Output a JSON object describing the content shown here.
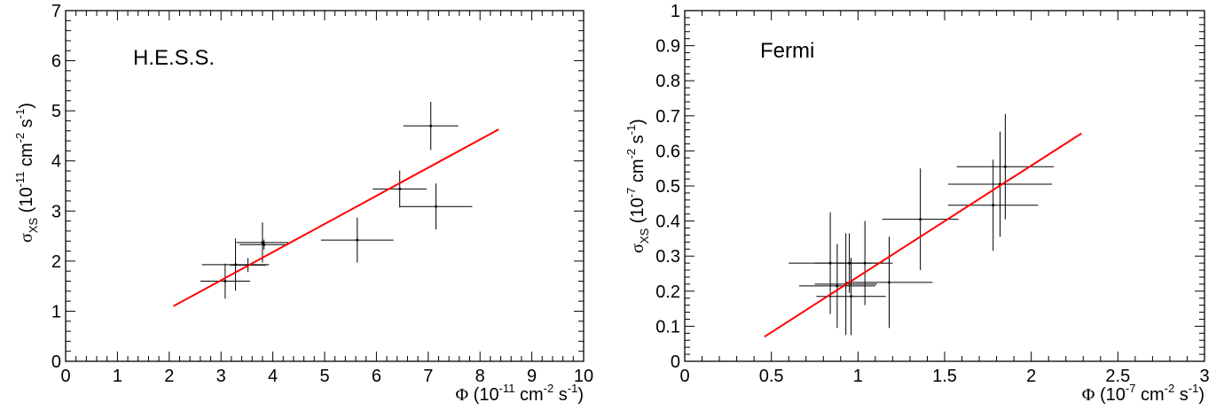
{
  "colors": {
    "fit_line": "#ff0000",
    "points": "#000000",
    "axes": "#000000"
  },
  "chart_data": [
    {
      "type": "scatter",
      "annotation": "H.E.S.S.",
      "xlabel": {
        "sym": "Φ",
        "pre": " (10",
        "exp": "-11",
        "mid": " cm",
        "exp2": "-2",
        "mid2": " s",
        "exp3": "-1",
        "post": ")"
      },
      "ylabel": {
        "sym": "σ",
        "sub": "XS",
        "pre": " (10",
        "exp": "-11",
        "mid": " cm",
        "exp2": "-2",
        "mid2": " s",
        "exp3": "-1",
        "post": ")"
      },
      "xlim": [
        0,
        10
      ],
      "ylim": [
        0,
        7
      ],
      "xticks": [
        0,
        1,
        2,
        3,
        4,
        5,
        6,
        7,
        8,
        9,
        10
      ],
      "xtick_labels": [
        "0",
        "1",
        "2",
        "3",
        "4",
        "5",
        "6",
        "7",
        "8",
        "9",
        "10"
      ],
      "yticks": [
        0,
        1,
        2,
        3,
        4,
        5,
        6,
        7
      ],
      "ytick_labels": [
        "0",
        "1",
        "2",
        "3",
        "4",
        "5",
        "6",
        "7"
      ],
      "x_minor_step": 0.2,
      "y_minor_step": 0.2,
      "points": [
        {
          "x": 3.08,
          "y": 1.6,
          "xerr": 0.48,
          "yerr": 0.35
        },
        {
          "x": 3.28,
          "y": 1.93,
          "xerr": 0.65,
          "yerr": 0.52
        },
        {
          "x": 3.52,
          "y": 1.92,
          "xerr": 0.35,
          "yerr": 0.14
        },
        {
          "x": 3.8,
          "y": 2.37,
          "xerr": 0.5,
          "yerr": 0.4
        },
        {
          "x": 3.83,
          "y": 2.33,
          "xerr": 0.47,
          "yerr": 0.1
        },
        {
          "x": 5.63,
          "y": 2.42,
          "xerr": 0.7,
          "yerr": 0.45
        },
        {
          "x": 6.45,
          "y": 3.44,
          "xerr": 0.52,
          "yerr": 0.37
        },
        {
          "x": 7.15,
          "y": 3.09,
          "xerr": 0.7,
          "yerr": 0.46
        },
        {
          "x": 7.05,
          "y": 4.7,
          "xerr": 0.53,
          "yerr": 0.48
        }
      ],
      "fit_line": {
        "x": [
          2.08,
          8.36
        ],
        "y": [
          1.1,
          4.63
        ]
      }
    },
    {
      "type": "scatter",
      "annotation": "Fermi",
      "xlabel": {
        "sym": "Φ",
        "pre": " (10",
        "exp": "-7",
        "mid": " cm",
        "exp2": "-2",
        "mid2": " s",
        "exp3": "-1",
        "post": ")"
      },
      "ylabel": {
        "sym": "σ",
        "sub": "XS",
        "pre": " (10",
        "exp": "-7",
        "mid": " cm",
        "exp2": "-2",
        "mid2": " s",
        "exp3": "-1",
        "post": ")"
      },
      "xlim": [
        0,
        3
      ],
      "ylim": [
        0,
        1
      ],
      "xticks": [
        0,
        0.5,
        1,
        1.5,
        2,
        2.5,
        3
      ],
      "xtick_labels": [
        "0",
        "0.5",
        "1",
        "1.5",
        "2",
        "2.5",
        "3"
      ],
      "yticks": [
        0,
        0.1,
        0.2,
        0.3,
        0.4,
        0.5,
        0.6,
        0.7,
        0.8,
        0.9,
        1
      ],
      "ytick_labels": [
        "0",
        "0.1",
        "0.2",
        "0.3",
        "0.4",
        "0.5",
        "0.6",
        "0.7",
        "0.8",
        "0.9",
        "1"
      ],
      "x_minor_step": 0.1,
      "y_minor_step": 0.02,
      "points": [
        {
          "x": 0.84,
          "y": 0.28,
          "xerr": 0.24,
          "yerr": 0.145
        },
        {
          "x": 0.88,
          "y": 0.215,
          "xerr": 0.22,
          "yerr": 0.12
        },
        {
          "x": 0.95,
          "y": 0.28,
          "xerr": 0.2,
          "yerr": 0.085
        },
        {
          "x": 0.93,
          "y": 0.22,
          "xerr": 0.18,
          "yerr": 0.145
        },
        {
          "x": 0.96,
          "y": 0.185,
          "xerr": 0.2,
          "yerr": 0.11
        },
        {
          "x": 1.04,
          "y": 0.28,
          "xerr": 0.16,
          "yerr": 0.12
        },
        {
          "x": 1.18,
          "y": 0.225,
          "xerr": 0.25,
          "yerr": 0.13
        },
        {
          "x": 1.36,
          "y": 0.405,
          "xerr": 0.22,
          "yerr": 0.145
        },
        {
          "x": 1.78,
          "y": 0.445,
          "xerr": 0.26,
          "yerr": 0.13
        },
        {
          "x": 1.82,
          "y": 0.505,
          "xerr": 0.3,
          "yerr": 0.15
        },
        {
          "x": 1.85,
          "y": 0.555,
          "xerr": 0.28,
          "yerr": 0.15
        }
      ],
      "fit_line": {
        "x": [
          0.46,
          2.29
        ],
        "y": [
          0.07,
          0.65
        ]
      }
    }
  ]
}
